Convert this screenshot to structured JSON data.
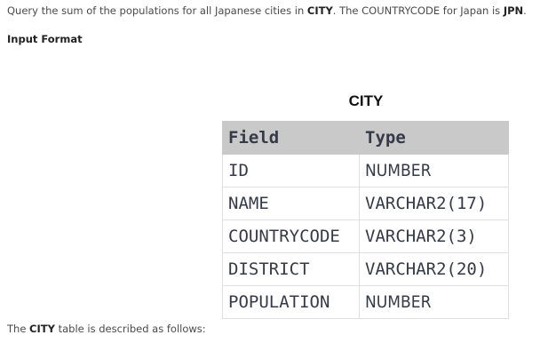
{
  "intro": {
    "pre": "Query the sum of the populations for all Japanese cities in ",
    "table": "CITY",
    "mid": ". The COUNTRYCODE for Japan is ",
    "code": "JPN",
    "end": "."
  },
  "input_format": "Input Format",
  "table": {
    "caption": "CITY",
    "headers": [
      "Field",
      "Type"
    ],
    "rows": [
      [
        "ID",
        "NUMBER"
      ],
      [
        "NAME",
        "VARCHAR2(17)"
      ],
      [
        "COUNTRYCODE",
        "VARCHAR2(3)"
      ],
      [
        "DISTRICT",
        "VARCHAR2(20)"
      ],
      [
        "POPULATION",
        "NUMBER"
      ]
    ]
  },
  "description": {
    "pre": "The ",
    "table": "CITY",
    "post": " table is described as follows:"
  }
}
